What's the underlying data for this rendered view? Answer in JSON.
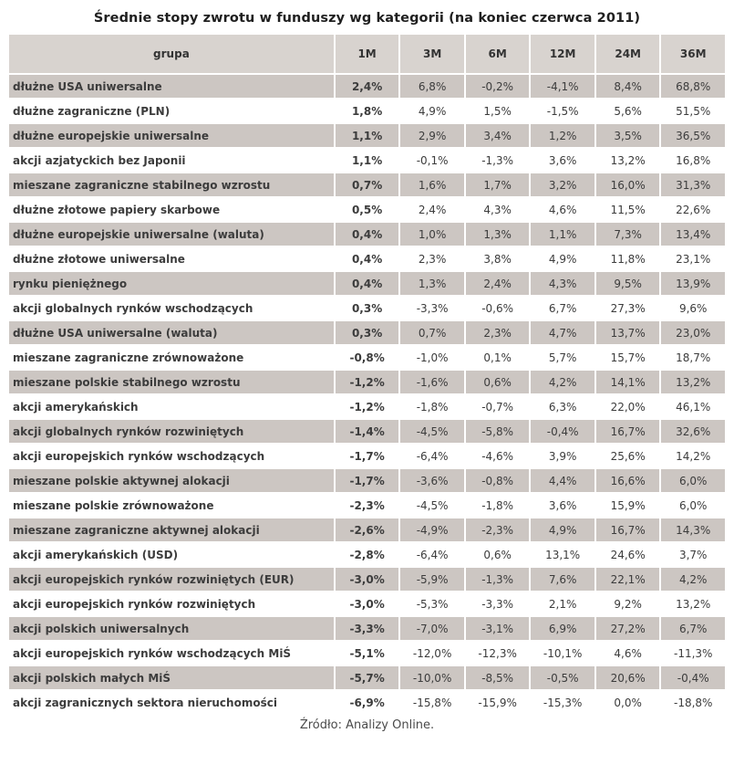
{
  "title": "Średnie stopy zwrotu w funduszy wg kategorii (na koniec czerwca 2011)",
  "source": "Źródło: Analizy Online.",
  "colors": {
    "header_bg": "#d8d3cf",
    "shaded_row_bg": "#ccc6c2",
    "plain_row_bg": "#ffffff",
    "text": "#3c3c3c"
  },
  "table": {
    "group_header": "grupa",
    "columns": [
      "1M",
      "3M",
      "6M",
      "12M",
      "24M",
      "36M"
    ],
    "rows": [
      {
        "group": "dłużne USA uniwersalne",
        "values": [
          "2,4%",
          "6,8%",
          "-0,2%",
          "-4,1%",
          "8,4%",
          "68,8%"
        ]
      },
      {
        "group": "dłużne zagraniczne (PLN)",
        "values": [
          "1,8%",
          "4,9%",
          "1,5%",
          "-1,5%",
          "5,6%",
          "51,5%"
        ]
      },
      {
        "group": "dłużne europejskie uniwersalne",
        "values": [
          "1,1%",
          "2,9%",
          "3,4%",
          "1,2%",
          "3,5%",
          "36,5%"
        ]
      },
      {
        "group": "akcji azjatyckich bez Japonii",
        "values": [
          "1,1%",
          "-0,1%",
          "-1,3%",
          "3,6%",
          "13,2%",
          "16,8%"
        ]
      },
      {
        "group": "mieszane zagraniczne stabilnego wzrostu",
        "values": [
          "0,7%",
          "1,6%",
          "1,7%",
          "3,2%",
          "16,0%",
          "31,3%"
        ]
      },
      {
        "group": "dłużne złotowe papiery skarbowe",
        "values": [
          "0,5%",
          "2,4%",
          "4,3%",
          "4,6%",
          "11,5%",
          "22,6%"
        ]
      },
      {
        "group": "dłużne europejskie uniwersalne (waluta)",
        "values": [
          "0,4%",
          "1,0%",
          "1,3%",
          "1,1%",
          "7,3%",
          "13,4%"
        ]
      },
      {
        "group": "dłużne złotowe uniwersalne",
        "values": [
          "0,4%",
          "2,3%",
          "3,8%",
          "4,9%",
          "11,8%",
          "23,1%"
        ]
      },
      {
        "group": "rynku pieniężnego",
        "values": [
          "0,4%",
          "1,3%",
          "2,4%",
          "4,3%",
          "9,5%",
          "13,9%"
        ]
      },
      {
        "group": "akcji globalnych rynków wschodzących",
        "values": [
          "0,3%",
          "-3,3%",
          "-0,6%",
          "6,7%",
          "27,3%",
          "9,6%"
        ]
      },
      {
        "group": "dłużne USA uniwersalne (waluta)",
        "values": [
          "0,3%",
          "0,7%",
          "2,3%",
          "4,7%",
          "13,7%",
          "23,0%"
        ]
      },
      {
        "group": "mieszane zagraniczne zrównoważone",
        "values": [
          "-0,8%",
          "-1,0%",
          "0,1%",
          "5,7%",
          "15,7%",
          "18,7%"
        ]
      },
      {
        "group": "mieszane polskie stabilnego wzrostu",
        "values": [
          "-1,2%",
          "-1,6%",
          "0,6%",
          "4,2%",
          "14,1%",
          "13,2%"
        ]
      },
      {
        "group": "akcji amerykańskich",
        "values": [
          "-1,2%",
          "-1,8%",
          "-0,7%",
          "6,3%",
          "22,0%",
          "46,1%"
        ]
      },
      {
        "group": "akcji globalnych rynków rozwiniętych",
        "values": [
          "-1,4%",
          "-4,5%",
          "-5,8%",
          "-0,4%",
          "16,7%",
          "32,6%"
        ]
      },
      {
        "group": "akcji europejskich rynków wschodzących",
        "values": [
          "-1,7%",
          "-6,4%",
          "-4,6%",
          "3,9%",
          "25,6%",
          "14,2%"
        ]
      },
      {
        "group": "mieszane polskie aktywnej alokacji",
        "values": [
          "-1,7%",
          "-3,6%",
          "-0,8%",
          "4,4%",
          "16,6%",
          "6,0%"
        ]
      },
      {
        "group": "mieszane polskie zrównoważone",
        "values": [
          "-2,3%",
          "-4,5%",
          "-1,8%",
          "3,6%",
          "15,9%",
          "6,0%"
        ]
      },
      {
        "group": "mieszane zagraniczne aktywnej alokacji",
        "values": [
          "-2,6%",
          "-4,9%",
          "-2,3%",
          "4,9%",
          "16,7%",
          "14,3%"
        ]
      },
      {
        "group": "akcji amerykańskich (USD)",
        "values": [
          "-2,8%",
          "-6,4%",
          "0,6%",
          "13,1%",
          "24,6%",
          "3,7%"
        ]
      },
      {
        "group": "akcji europejskich rynków rozwiniętych (EUR)",
        "values": [
          "-3,0%",
          "-5,9%",
          "-1,3%",
          "7,6%",
          "22,1%",
          "4,2%"
        ]
      },
      {
        "group": "akcji europejskich rynków rozwiniętych",
        "values": [
          "-3,0%",
          "-5,3%",
          "-3,3%",
          "2,1%",
          "9,2%",
          "13,2%"
        ]
      },
      {
        "group": "akcji polskich uniwersalnych",
        "values": [
          "-3,3%",
          "-7,0%",
          "-3,1%",
          "6,9%",
          "27,2%",
          "6,7%"
        ]
      },
      {
        "group": "akcji europejskich rynków wschodzących MiŚ",
        "values": [
          "-5,1%",
          "-12,0%",
          "-12,3%",
          "-10,1%",
          "4,6%",
          "-11,3%"
        ]
      },
      {
        "group": "akcji polskich małych MiŚ",
        "values": [
          "-5,7%",
          "-10,0%",
          "-8,5%",
          "-0,5%",
          "20,6%",
          "-0,4%"
        ]
      },
      {
        "group": "akcji zagranicznych sektora nieruchomości",
        "values": [
          "-6,9%",
          "-15,8%",
          "-15,9%",
          "-15,3%",
          "0,0%",
          "-18,8%"
        ]
      }
    ]
  },
  "chart_data": {
    "type": "table",
    "title": "Średnie stopy zwrotu w funduszy wg kategorii (na koniec czerwca 2011)",
    "unit": "%",
    "columns": [
      "grupa",
      "1M",
      "3M",
      "6M",
      "12M",
      "24M",
      "36M"
    ],
    "rows": [
      [
        "dłużne USA uniwersalne",
        2.4,
        6.8,
        -0.2,
        -4.1,
        8.4,
        68.8
      ],
      [
        "dłużne zagraniczne (PLN)",
        1.8,
        4.9,
        1.5,
        -1.5,
        5.6,
        51.5
      ],
      [
        "dłużne europejskie uniwersalne",
        1.1,
        2.9,
        3.4,
        1.2,
        3.5,
        36.5
      ],
      [
        "akcji azjatyckich bez Japonii",
        1.1,
        -0.1,
        -1.3,
        3.6,
        13.2,
        16.8
      ],
      [
        "mieszane zagraniczne stabilnego wzrostu",
        0.7,
        1.6,
        1.7,
        3.2,
        16.0,
        31.3
      ],
      [
        "dłużne złotowe papiery skarbowe",
        0.5,
        2.4,
        4.3,
        4.6,
        11.5,
        22.6
      ],
      [
        "dłużne europejskie uniwersalne (waluta)",
        0.4,
        1.0,
        1.3,
        1.1,
        7.3,
        13.4
      ],
      [
        "dłużne złotowe uniwersalne",
        0.4,
        2.3,
        3.8,
        4.9,
        11.8,
        23.1
      ],
      [
        "rynku pieniężnego",
        0.4,
        1.3,
        2.4,
        4.3,
        9.5,
        13.9
      ],
      [
        "akcji globalnych rynków wschodzących",
        0.3,
        -3.3,
        -0.6,
        6.7,
        27.3,
        9.6
      ],
      [
        "dłużne USA uniwersalne (waluta)",
        0.3,
        0.7,
        2.3,
        4.7,
        13.7,
        23.0
      ],
      [
        "mieszane zagraniczne zrównoważone",
        -0.8,
        -1.0,
        0.1,
        5.7,
        15.7,
        18.7
      ],
      [
        "mieszane polskie stabilnego wzrostu",
        -1.2,
        -1.6,
        0.6,
        4.2,
        14.1,
        13.2
      ],
      [
        "akcji amerykańskich",
        -1.2,
        -1.8,
        -0.7,
        6.3,
        22.0,
        46.1
      ],
      [
        "akcji globalnych rynków rozwiniętych",
        -1.4,
        -4.5,
        -5.8,
        -0.4,
        16.7,
        32.6
      ],
      [
        "akcji europejskich rynków wschodzących",
        -1.7,
        -6.4,
        -4.6,
        3.9,
        25.6,
        14.2
      ],
      [
        "mieszane polskie aktywnej alokacji",
        -1.7,
        -3.6,
        -0.8,
        4.4,
        16.6,
        6.0
      ],
      [
        "mieszane polskie zrównoważone",
        -2.3,
        -4.5,
        -1.8,
        3.6,
        15.9,
        6.0
      ],
      [
        "mieszane zagraniczne aktywnej alokacji",
        -2.6,
        -4.9,
        -2.3,
        4.9,
        16.7,
        14.3
      ],
      [
        "akcji amerykańskich (USD)",
        -2.8,
        -6.4,
        0.6,
        13.1,
        24.6,
        3.7
      ],
      [
        "akcji europejskich rynków rozwiniętych (EUR)",
        -3.0,
        -5.9,
        -1.3,
        7.6,
        22.1,
        4.2
      ],
      [
        "akcji europejskich rynków rozwiniętych",
        -3.0,
        -5.3,
        -3.3,
        2.1,
        9.2,
        13.2
      ],
      [
        "akcji polskich uniwersalnych",
        -3.3,
        -7.0,
        -3.1,
        6.9,
        27.2,
        6.7
      ],
      [
        "akcji europejskich rynków wschodzących MiŚ",
        -5.1,
        -12.0,
        -12.3,
        -10.1,
        4.6,
        -11.3
      ],
      [
        "akcji polskich małych MiŚ",
        -5.7,
        -10.0,
        -8.5,
        -0.5,
        20.6,
        -0.4
      ],
      [
        "akcji zagranicznych sektora nieruchomości",
        -6.9,
        -15.8,
        -15.9,
        -15.3,
        0.0,
        -18.8
      ]
    ]
  }
}
